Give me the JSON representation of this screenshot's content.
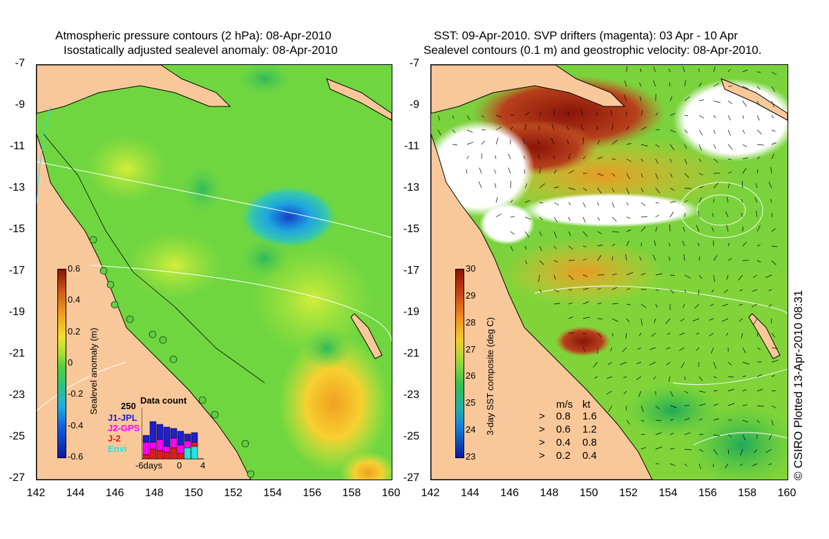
{
  "left_panel": {
    "title_line1": "Atmospheric pressure contours (2 hPa): 08-Apr-2010",
    "title_line2": "Isostatically adjusted sealevel anomaly: 08-Apr-2010",
    "colorbar": {
      "title": "Sealevel anomaly (m)",
      "ticks": [
        "0.6",
        "0.4",
        "0.2",
        "0",
        "-0.2",
        "-0.4",
        "-0.6"
      ]
    },
    "data_count": {
      "title": "Data count",
      "max_label": "250",
      "series": [
        {
          "name": "J1-JPL",
          "color": "#1f1fcc"
        },
        {
          "name": "J2-GPS",
          "color": "#ff00ff"
        },
        {
          "name": "J-2",
          "color": "#e31a1a"
        },
        {
          "name": "Envi",
          "color": "#22e5e5"
        }
      ],
      "x_labels": [
        "-6days",
        "0",
        "4"
      ]
    }
  },
  "right_panel": {
    "title_line1": "SST: 09-Apr-2010. SVP drifters (magenta): 03 Apr - 10 Apr",
    "title_line2": "Sealevel contours (0.1 m) and geostrophic velocity: 08-Apr-2010.",
    "colorbar": {
      "title": "3-day SST composite (deg C)",
      "ticks": [
        "30",
        "29",
        "28",
        "27",
        "26",
        "25",
        "24",
        "23"
      ]
    },
    "velocity_legend": {
      "header_ms": "m/s",
      "header_kt": "kt",
      "rows": [
        {
          "ms": "0.8",
          "kt": "1.6"
        },
        {
          "ms": "0.6",
          "kt": "1.2"
        },
        {
          "ms": "0.4",
          "kt": "0.8"
        },
        {
          "ms": "0.2",
          "kt": "0.4"
        }
      ]
    }
  },
  "axes": {
    "y_ticks": [
      "-7",
      "-9",
      "-11",
      "-13",
      "-15",
      "-17",
      "-19",
      "-21",
      "-23",
      "-25",
      "-27"
    ],
    "x_ticks": [
      "142",
      "144",
      "146",
      "148",
      "150",
      "152",
      "154",
      "156",
      "158",
      "160"
    ]
  },
  "credit": "© CSIRO Plotted 13-Apr-2010 08:31",
  "colors": {
    "land": "#f9c89a",
    "ocean_green": "#7fdc3a",
    "sst_warm": "#a0200f"
  }
}
